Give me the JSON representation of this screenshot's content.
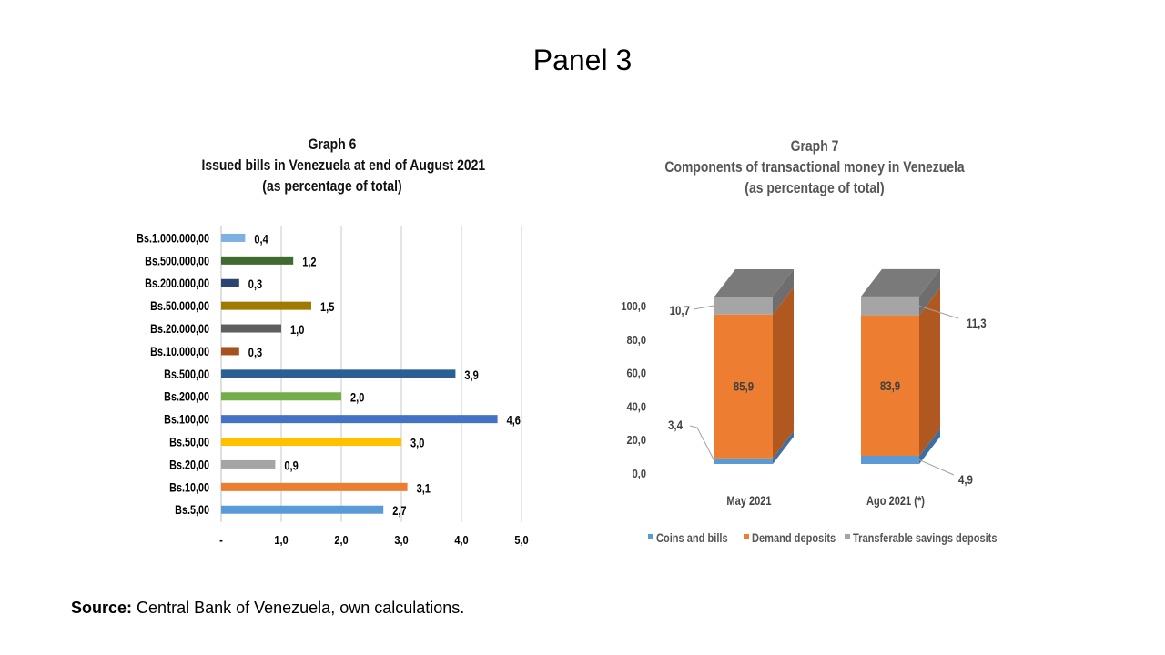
{
  "panel_title": "Panel 3",
  "source": {
    "label": "Source:",
    "text": "Central Bank of Venezuela, own calculations."
  },
  "chart_data": [
    {
      "type": "bar",
      "orientation": "horizontal",
      "title_lines": [
        "Graph 6",
        "Issued bills in Venezuela at end of August 2021",
        "(as percentage of total)"
      ],
      "categories": [
        "Bs.1.000.000,00",
        "Bs.500.000,00",
        "Bs.200.000,00",
        "Bs.50.000,00",
        "Bs.20.000,00",
        "Bs.10.000,00",
        "Bs.500,00",
        "Bs.200,00",
        "Bs.100,00",
        "Bs.50,00",
        "Bs.20,00",
        "Bs.10,00",
        "Bs.5,00"
      ],
      "values": [
        0.4,
        1.2,
        0.3,
        1.5,
        1.0,
        0.3,
        3.9,
        2.0,
        4.6,
        3.0,
        0.9,
        3.1,
        2.7
      ],
      "value_labels": [
        "0,4",
        "1,2",
        "0,3",
        "1,5",
        "1,0",
        "0,3",
        "3,9",
        "2,0",
        "4,6",
        "3,0",
        "0,9",
        "3,1",
        "2,7"
      ],
      "colors": [
        "#7FB1E0",
        "#3F6B2F",
        "#2B4472",
        "#A07A00",
        "#5F5F5F",
        "#A6521F",
        "#2A5F95",
        "#72AE4A",
        "#4472C4",
        "#FFC000",
        "#A5A5A5",
        "#ED7D31",
        "#5B9BD5"
      ],
      "xlim": [
        0,
        5
      ],
      "x_ticks": [
        0,
        1,
        2,
        3,
        4,
        5
      ],
      "x_tick_labels": [
        "-",
        "1,0",
        "2,0",
        "3,0",
        "4,0",
        "5,0"
      ],
      "grid": "vertical"
    },
    {
      "type": "bar",
      "stacked": true,
      "three_d": true,
      "title_lines": [
        "Graph 7",
        "Components of transactional money in Venezuela",
        "(as percentage of total)"
      ],
      "categories": [
        "May  2021",
        "Ago 2021 (*)"
      ],
      "series": [
        {
          "name": "Coins and bills",
          "values": [
            3.4,
            4.9
          ],
          "value_labels": [
            "3,4",
            "4,9"
          ],
          "color": "#5B9BD5"
        },
        {
          "name": "Demand deposits",
          "values": [
            85.9,
            83.9
          ],
          "value_labels": [
            "85,9",
            "83,9"
          ],
          "color": "#ED7D31"
        },
        {
          "name": "Transferable savings deposits",
          "values": [
            10.7,
            11.3
          ],
          "value_labels": [
            "10,7",
            "11,3"
          ],
          "color": "#A5A5A5"
        }
      ],
      "ylim": [
        0,
        100
      ],
      "y_ticks": [
        0,
        20,
        40,
        60,
        80,
        100
      ],
      "y_tick_labels": [
        "0,0",
        "20,0",
        "40,0",
        "60,0",
        "80,0",
        "100,0"
      ],
      "legend_position": "bottom"
    }
  ]
}
